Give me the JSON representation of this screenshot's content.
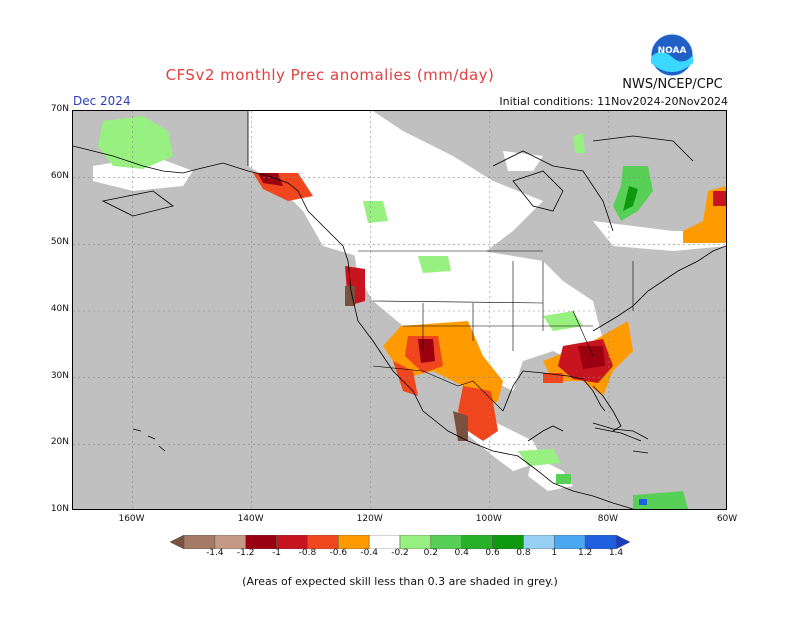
{
  "header": {
    "title": "CFSv2 monthly Prec anomalies (mm/day)",
    "agency": "NWS/NCEP/CPC",
    "month": "Dec 2024",
    "initial_conditions": "Initial conditions: 11Nov2024-20Nov2024",
    "logo_text": "NOAA"
  },
  "map": {
    "lat_labels": [
      "70N",
      "60N",
      "50N",
      "40N",
      "30N",
      "20N",
      "10N"
    ],
    "lon_labels": [
      "160W",
      "140W",
      "120W",
      "100W",
      "80W",
      "60W"
    ],
    "lat_range": [
      10,
      70
    ],
    "lon_range": [
      -170,
      -60
    ],
    "grey_color": "#c0c0c0"
  },
  "colorbar": {
    "labels": [
      "-1.4",
      "-1.2",
      "-1",
      "-0.8",
      "-0.6",
      "-0.4",
      "-0.2",
      "0.2",
      "0.4",
      "0.6",
      "0.8",
      "1",
      "1.2",
      "1.4"
    ],
    "colors": [
      "#7a5040",
      "#a57a66",
      "#c49a86",
      "#9a0010",
      "#c8141e",
      "#f0461e",
      "#ff9a00",
      "#ffffff",
      "#98f080",
      "#58d058",
      "#28b028",
      "#0e9a0e",
      "#98cff5",
      "#4aa8f0",
      "#2060e0",
      "#1a3ec0"
    ]
  },
  "footnote": "(Areas of expected skill less than 0.3 are shaded in grey.)"
}
